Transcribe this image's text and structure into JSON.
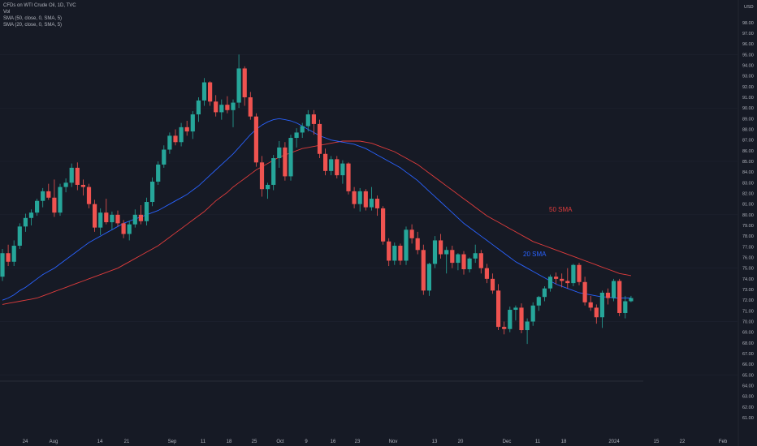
{
  "legend": {
    "symbol": "CFDs on WTI Crude Oil, 1D, TVC",
    "vol": "Vol",
    "sma50": "SMA (50, close, 0, SMA, 5)",
    "sma20": "SMA (20, close, 0, SMA, 5)"
  },
  "currency": "USD",
  "colors": {
    "background": "#161a25",
    "up": "#26a69a",
    "down": "#ef5350",
    "sma20": "#2962ff",
    "sma50": "#e03c3c",
    "text": "#b2b5be"
  },
  "annotations": {
    "sma50_label": "50 SMA",
    "sma20_label": "20 SMA"
  },
  "chart_data": {
    "type": "candlestick",
    "title": "CFDs on WTI Crude Oil, 1D, TVC",
    "ylabel": "USD",
    "ylim": [
      58.8,
      99.2
    ],
    "y_ticks": [
      "61.00",
      "62.00",
      "63.00",
      "64.00",
      "65.00",
      "66.00",
      "67.00",
      "68.00",
      "69.00",
      "70.00",
      "71.00",
      "72.00",
      "73.00",
      "74.00",
      "75.00",
      "76.00",
      "77.00",
      "78.00",
      "79.00",
      "80.00",
      "81.00",
      "82.00",
      "83.00",
      "84.00",
      "85.00",
      "86.00",
      "87.00",
      "88.00",
      "89.00",
      "90.00",
      "91.00",
      "92.00",
      "93.00",
      "94.00",
      "95.00",
      "96.00",
      "97.00",
      "98.00"
    ],
    "x_ticks": [
      "24",
      "Aug",
      "14",
      "21",
      "Sep",
      "11",
      "18",
      "25",
      "Oct",
      "9",
      "16",
      "23",
      "Nov",
      "13",
      "20",
      "Dec",
      "11",
      "18",
      "2024",
      "15",
      "22",
      "Feb"
    ],
    "candles": [
      {
        "o": 74.2,
        "h": 76.8,
        "l": 73.8,
        "c": 76.4
      },
      {
        "o": 76.4,
        "h": 77.2,
        "l": 75.2,
        "c": 75.6
      },
      {
        "o": 75.6,
        "h": 77.6,
        "l": 75.2,
        "c": 77.1
      },
      {
        "o": 77.1,
        "h": 79.2,
        "l": 76.8,
        "c": 78.9
      },
      {
        "o": 78.9,
        "h": 80.1,
        "l": 78.4,
        "c": 79.7
      },
      {
        "o": 79.7,
        "h": 80.5,
        "l": 79.0,
        "c": 80.2
      },
      {
        "o": 80.2,
        "h": 81.5,
        "l": 79.9,
        "c": 81.3
      },
      {
        "o": 81.3,
        "h": 82.5,
        "l": 80.7,
        "c": 82.2
      },
      {
        "o": 82.2,
        "h": 82.9,
        "l": 81.4,
        "c": 81.6
      },
      {
        "o": 81.6,
        "h": 83.3,
        "l": 79.8,
        "c": 80.2
      },
      {
        "o": 80.2,
        "h": 82.9,
        "l": 79.9,
        "c": 82.6
      },
      {
        "o": 82.6,
        "h": 83.4,
        "l": 82.1,
        "c": 83.0
      },
      {
        "o": 83.0,
        "h": 84.8,
        "l": 82.6,
        "c": 84.4
      },
      {
        "o": 84.4,
        "h": 84.9,
        "l": 82.3,
        "c": 82.8
      },
      {
        "o": 82.8,
        "h": 83.3,
        "l": 81.8,
        "c": 82.6
      },
      {
        "o": 82.6,
        "h": 82.9,
        "l": 80.6,
        "c": 81.0
      },
      {
        "o": 81.0,
        "h": 81.4,
        "l": 78.4,
        "c": 78.8
      },
      {
        "o": 78.8,
        "h": 80.6,
        "l": 78.1,
        "c": 80.2
      },
      {
        "o": 80.2,
        "h": 81.5,
        "l": 79.1,
        "c": 79.3
      },
      {
        "o": 79.3,
        "h": 80.3,
        "l": 78.6,
        "c": 80.0
      },
      {
        "o": 80.0,
        "h": 80.4,
        "l": 78.9,
        "c": 79.2
      },
      {
        "o": 79.2,
        "h": 79.5,
        "l": 77.8,
        "c": 78.2
      },
      {
        "o": 78.2,
        "h": 79.4,
        "l": 77.6,
        "c": 79.1
      },
      {
        "o": 79.1,
        "h": 80.5,
        "l": 78.8,
        "c": 80.0
      },
      {
        "o": 80.0,
        "h": 80.9,
        "l": 79.1,
        "c": 79.4
      },
      {
        "o": 79.4,
        "h": 81.6,
        "l": 79.0,
        "c": 81.2
      },
      {
        "o": 81.2,
        "h": 83.5,
        "l": 80.8,
        "c": 83.1
      },
      {
        "o": 83.1,
        "h": 85.0,
        "l": 82.8,
        "c": 84.7
      },
      {
        "o": 84.7,
        "h": 86.5,
        "l": 84.4,
        "c": 86.1
      },
      {
        "o": 86.1,
        "h": 87.7,
        "l": 85.7,
        "c": 87.4
      },
      {
        "o": 87.4,
        "h": 88.0,
        "l": 86.5,
        "c": 86.8
      },
      {
        "o": 86.8,
        "h": 88.6,
        "l": 86.4,
        "c": 88.2
      },
      {
        "o": 88.2,
        "h": 88.8,
        "l": 87.4,
        "c": 87.8
      },
      {
        "o": 87.8,
        "h": 89.7,
        "l": 87.1,
        "c": 89.4
      },
      {
        "o": 89.4,
        "h": 91.0,
        "l": 88.7,
        "c": 90.7
      },
      {
        "o": 90.7,
        "h": 92.8,
        "l": 90.2,
        "c": 92.4
      },
      {
        "o": 92.4,
        "h": 92.5,
        "l": 90.2,
        "c": 90.6
      },
      {
        "o": 90.6,
        "h": 91.2,
        "l": 89.2,
        "c": 89.6
      },
      {
        "o": 89.6,
        "h": 90.8,
        "l": 88.9,
        "c": 90.3
      },
      {
        "o": 90.3,
        "h": 91.1,
        "l": 89.5,
        "c": 89.8
      },
      {
        "o": 89.8,
        "h": 90.8,
        "l": 88.2,
        "c": 90.5
      },
      {
        "o": 90.5,
        "h": 95.0,
        "l": 90.0,
        "c": 93.7
      },
      {
        "o": 93.7,
        "h": 93.9,
        "l": 90.2,
        "c": 91.0
      },
      {
        "o": 91.0,
        "h": 91.5,
        "l": 88.9,
        "c": 89.2
      },
      {
        "o": 89.2,
        "h": 89.5,
        "l": 84.5,
        "c": 84.9
      },
      {
        "o": 84.9,
        "h": 85.5,
        "l": 81.7,
        "c": 82.4
      },
      {
        "o": 82.4,
        "h": 83.0,
        "l": 81.5,
        "c": 82.8
      },
      {
        "o": 82.8,
        "h": 85.6,
        "l": 82.3,
        "c": 85.3
      },
      {
        "o": 85.3,
        "h": 86.9,
        "l": 84.4,
        "c": 86.3
      },
      {
        "o": 86.3,
        "h": 86.8,
        "l": 83.2,
        "c": 83.6
      },
      {
        "o": 83.6,
        "h": 87.5,
        "l": 83.2,
        "c": 87.2
      },
      {
        "o": 87.2,
        "h": 88.1,
        "l": 86.3,
        "c": 87.7
      },
      {
        "o": 87.7,
        "h": 88.6,
        "l": 87.2,
        "c": 88.3
      },
      {
        "o": 88.3,
        "h": 89.8,
        "l": 87.8,
        "c": 89.4
      },
      {
        "o": 89.4,
        "h": 89.8,
        "l": 87.5,
        "c": 88.5
      },
      {
        "o": 88.5,
        "h": 88.9,
        "l": 85.3,
        "c": 85.7
      },
      {
        "o": 85.7,
        "h": 86.2,
        "l": 83.7,
        "c": 84.1
      },
      {
        "o": 84.1,
        "h": 85.5,
        "l": 83.7,
        "c": 85.2
      },
      {
        "o": 85.2,
        "h": 85.5,
        "l": 83.4,
        "c": 83.7
      },
      {
        "o": 83.7,
        "h": 85.1,
        "l": 82.9,
        "c": 84.8
      },
      {
        "o": 84.8,
        "h": 84.9,
        "l": 81.9,
        "c": 82.2
      },
      {
        "o": 82.2,
        "h": 82.6,
        "l": 80.6,
        "c": 81.0
      },
      {
        "o": 81.0,
        "h": 82.5,
        "l": 80.3,
        "c": 82.2
      },
      {
        "o": 82.2,
        "h": 82.4,
        "l": 80.4,
        "c": 80.7
      },
      {
        "o": 80.7,
        "h": 82.6,
        "l": 80.4,
        "c": 81.5
      },
      {
        "o": 81.5,
        "h": 81.8,
        "l": 79.9,
        "c": 80.6
      },
      {
        "o": 80.6,
        "h": 80.8,
        "l": 77.2,
        "c": 77.5
      },
      {
        "o": 77.5,
        "h": 77.8,
        "l": 75.2,
        "c": 75.7
      },
      {
        "o": 75.7,
        "h": 77.4,
        "l": 75.3,
        "c": 77.1
      },
      {
        "o": 77.1,
        "h": 77.3,
        "l": 75.3,
        "c": 75.7
      },
      {
        "o": 75.7,
        "h": 78.9,
        "l": 75.3,
        "c": 78.6
      },
      {
        "o": 78.6,
        "h": 79.1,
        "l": 77.3,
        "c": 77.8
      },
      {
        "o": 77.8,
        "h": 78.4,
        "l": 76.3,
        "c": 76.7
      },
      {
        "o": 76.7,
        "h": 77.2,
        "l": 72.5,
        "c": 72.9
      },
      {
        "o": 72.9,
        "h": 75.5,
        "l": 72.4,
        "c": 75.4
      },
      {
        "o": 75.4,
        "h": 78.0,
        "l": 75.0,
        "c": 77.6
      },
      {
        "o": 77.6,
        "h": 78.2,
        "l": 75.9,
        "c": 76.3
      },
      {
        "o": 76.3,
        "h": 77.0,
        "l": 74.5,
        "c": 76.7
      },
      {
        "o": 76.7,
        "h": 77.1,
        "l": 75.0,
        "c": 75.5
      },
      {
        "o": 75.5,
        "h": 76.4,
        "l": 74.8,
        "c": 76.3
      },
      {
        "o": 76.3,
        "h": 76.6,
        "l": 74.4,
        "c": 74.9
      },
      {
        "o": 74.9,
        "h": 76.0,
        "l": 74.6,
        "c": 75.9
      },
      {
        "o": 75.9,
        "h": 77.2,
        "l": 75.5,
        "c": 76.4
      },
      {
        "o": 76.4,
        "h": 76.7,
        "l": 74.5,
        "c": 75.0
      },
      {
        "o": 75.0,
        "h": 75.4,
        "l": 73.6,
        "c": 74.0
      },
      {
        "o": 74.0,
        "h": 74.5,
        "l": 72.6,
        "c": 72.9
      },
      {
        "o": 72.9,
        "h": 73.5,
        "l": 69.2,
        "c": 69.5
      },
      {
        "o": 69.5,
        "h": 70.0,
        "l": 68.8,
        "c": 69.3
      },
      {
        "o": 69.3,
        "h": 71.4,
        "l": 69.0,
        "c": 71.1
      },
      {
        "o": 71.1,
        "h": 71.5,
        "l": 70.1,
        "c": 71.3
      },
      {
        "o": 71.3,
        "h": 71.7,
        "l": 68.9,
        "c": 69.2
      },
      {
        "o": 69.2,
        "h": 70.3,
        "l": 67.9,
        "c": 70.0
      },
      {
        "o": 70.0,
        "h": 71.8,
        "l": 69.6,
        "c": 71.5
      },
      {
        "o": 71.5,
        "h": 72.4,
        "l": 71.0,
        "c": 72.3
      },
      {
        "o": 72.3,
        "h": 73.3,
        "l": 71.9,
        "c": 73.1
      },
      {
        "o": 73.1,
        "h": 74.4,
        "l": 72.8,
        "c": 74.2
      },
      {
        "o": 74.2,
        "h": 74.6,
        "l": 73.5,
        "c": 74.0
      },
      {
        "o": 74.0,
        "h": 74.5,
        "l": 73.2,
        "c": 73.8
      },
      {
        "o": 73.8,
        "h": 75.0,
        "l": 73.1,
        "c": 73.6
      },
      {
        "o": 73.6,
        "h": 75.4,
        "l": 73.3,
        "c": 75.3
      },
      {
        "o": 75.3,
        "h": 75.5,
        "l": 73.4,
        "c": 73.7
      },
      {
        "o": 73.7,
        "h": 74.2,
        "l": 71.5,
        "c": 71.8
      },
      {
        "o": 71.8,
        "h": 72.4,
        "l": 71.0,
        "c": 71.3
      },
      {
        "o": 71.3,
        "h": 71.6,
        "l": 69.8,
        "c": 70.4
      },
      {
        "o": 70.4,
        "h": 72.9,
        "l": 69.4,
        "c": 72.7
      },
      {
        "o": 72.7,
        "h": 73.1,
        "l": 71.6,
        "c": 72.2
      },
      {
        "o": 72.2,
        "h": 74.0,
        "l": 71.9,
        "c": 73.8
      },
      {
        "o": 73.8,
        "h": 74.0,
        "l": 70.5,
        "c": 70.8
      },
      {
        "o": 70.8,
        "h": 72.4,
        "l": 70.3,
        "c": 71.9
      },
      {
        "o": 71.9,
        "h": 72.4,
        "l": 71.8,
        "c": 72.2
      }
    ],
    "sma20": [
      72.0,
      72.2,
      72.5,
      72.9,
      73.2,
      73.6,
      74.0,
      74.4,
      74.7,
      75.0,
      75.4,
      75.8,
      76.2,
      76.6,
      77.0,
      77.4,
      77.7,
      78.0,
      78.3,
      78.6,
      78.9,
      79.2,
      79.4,
      79.6,
      79.8,
      80.0,
      80.2,
      80.4,
      80.7,
      81.0,
      81.3,
      81.6,
      81.9,
      82.3,
      82.7,
      83.2,
      83.7,
      84.2,
      84.7,
      85.2,
      85.7,
      86.3,
      86.9,
      87.5,
      88.0,
      88.4,
      88.7,
      88.9,
      89.0,
      88.9,
      88.8,
      88.6,
      88.3,
      88.0,
      87.7,
      87.4,
      87.2,
      87.0,
      86.9,
      86.8,
      86.7,
      86.6,
      86.4,
      86.2,
      85.9,
      85.6,
      85.3,
      85.0,
      84.7,
      84.4,
      84.0,
      83.6,
      83.2,
      82.7,
      82.2,
      81.7,
      81.2,
      80.7,
      80.2,
      79.7,
      79.2,
      78.8,
      78.4,
      78.0,
      77.6,
      77.2,
      76.8,
      76.4,
      76.0,
      75.6,
      75.3,
      75.0,
      74.7,
      74.4,
      74.1,
      73.8,
      73.5,
      73.3,
      73.1,
      72.9,
      72.7,
      72.6,
      72.5,
      72.4,
      72.3,
      72.3,
      72.2,
      72.2,
      72.2,
      72.2
    ],
    "sma50": [
      71.6,
      71.7,
      71.8,
      71.9,
      72.0,
      72.1,
      72.2,
      72.4,
      72.6,
      72.8,
      73.0,
      73.2,
      73.4,
      73.6,
      73.8,
      74.0,
      74.2,
      74.4,
      74.6,
      74.8,
      75.0,
      75.3,
      75.6,
      75.9,
      76.2,
      76.5,
      76.8,
      77.1,
      77.5,
      77.9,
      78.3,
      78.7,
      79.1,
      79.5,
      79.9,
      80.3,
      80.8,
      81.3,
      81.7,
      82.1,
      82.6,
      83.0,
      83.4,
      83.8,
      84.2,
      84.5,
      84.8,
      85.1,
      85.4,
      85.6,
      85.8,
      86.0,
      86.2,
      86.3,
      86.4,
      86.5,
      86.6,
      86.7,
      86.8,
      86.9,
      86.9,
      86.9,
      86.9,
      86.8,
      86.7,
      86.5,
      86.3,
      86.1,
      85.9,
      85.6,
      85.3,
      85.0,
      84.7,
      84.3,
      83.9,
      83.5,
      83.1,
      82.7,
      82.3,
      81.9,
      81.5,
      81.1,
      80.7,
      80.3,
      79.9,
      79.6,
      79.3,
      79.0,
      78.7,
      78.4,
      78.1,
      77.8,
      77.5,
      77.3,
      77.1,
      76.9,
      76.7,
      76.5,
      76.3,
      76.1,
      75.9,
      75.7,
      75.5,
      75.3,
      75.1,
      74.9,
      74.7,
      74.5,
      74.4,
      74.3
    ]
  }
}
